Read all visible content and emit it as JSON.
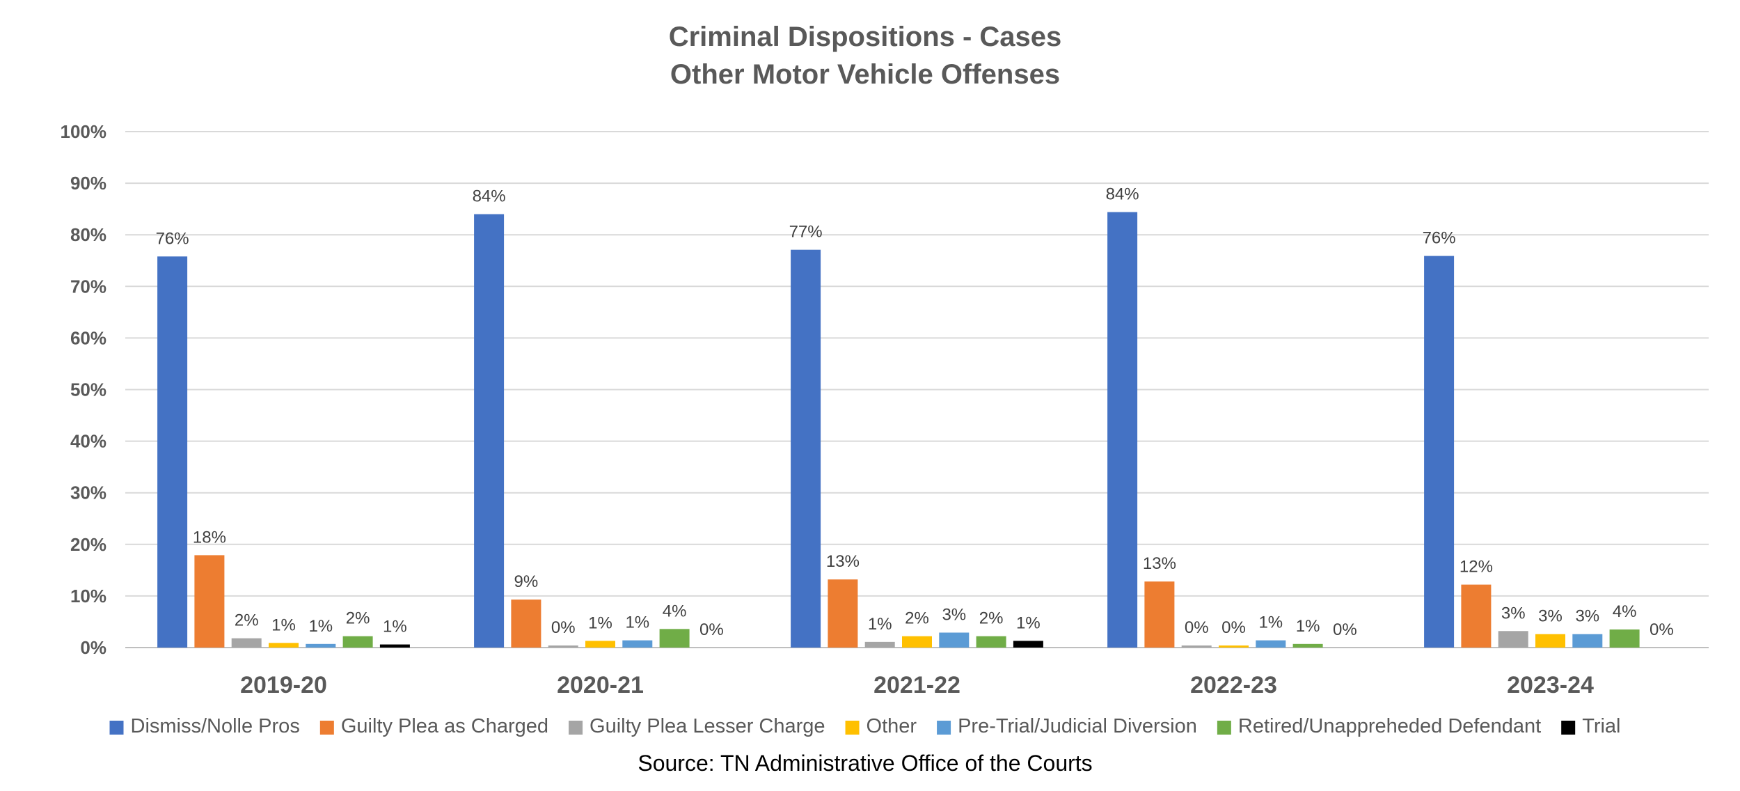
{
  "chart_data": {
    "type": "bar",
    "title": "Criminal Dispositions - Cases",
    "subtitle": "Other Motor Vehicle Offenses",
    "categories": [
      "2019-20",
      "2020-21",
      "2021-22",
      "2022-23",
      "2023-24"
    ],
    "series": [
      {
        "name": "Dismiss/Nolle Pros",
        "color": "#4472C4",
        "values": [
          75.8,
          84.0,
          77.1,
          84.4,
          75.9
        ],
        "labels": [
          "76%",
          "84%",
          "77%",
          "84%",
          "76%"
        ]
      },
      {
        "name": "Guilty Plea as Charged",
        "color": "#ED7D31",
        "values": [
          17.9,
          9.3,
          13.2,
          12.8,
          12.2
        ],
        "labels": [
          "18%",
          "9%",
          "13%",
          "13%",
          "12%"
        ]
      },
      {
        "name": "Guilty Plea Lesser Charge",
        "color": "#A5A5A5",
        "values": [
          1.8,
          0.4,
          1.1,
          0.4,
          3.2
        ],
        "labels": [
          "2%",
          "0%",
          "1%",
          "0%",
          "3%"
        ]
      },
      {
        "name": "Other",
        "color": "#FFC000",
        "values": [
          0.9,
          1.3,
          2.2,
          0.4,
          2.6
        ],
        "labels": [
          "1%",
          "1%",
          "2%",
          "0%",
          "3%"
        ]
      },
      {
        "name": "Pre-Trial/Judicial Diversion",
        "color": "#5B9BD5",
        "values": [
          0.7,
          1.4,
          2.9,
          1.4,
          2.6
        ],
        "labels": [
          "1%",
          "1%",
          "3%",
          "1%",
          "3%"
        ]
      },
      {
        "name": "Retired/Unappreheded Defendant",
        "color": "#70AD47",
        "values": [
          2.2,
          3.6,
          2.2,
          0.7,
          3.5
        ],
        "labels": [
          "2%",
          "4%",
          "2%",
          "1%",
          "4%"
        ]
      },
      {
        "name": "Trial",
        "color": "#000000",
        "values": [
          0.6,
          0.0,
          1.3,
          0.0,
          0.0
        ],
        "labels": [
          "1%",
          "0%",
          "1%",
          "0%",
          "0%"
        ]
      }
    ],
    "yticks": [
      "0%",
      "10%",
      "20%",
      "30%",
      "40%",
      "50%",
      "60%",
      "70%",
      "80%",
      "90%",
      "100%"
    ],
    "ylim": [
      0,
      100
    ],
    "grid": true,
    "legend_position": "bottom",
    "gridline_color": "#D9D9D9",
    "source": "Source: TN Administrative Office of the Courts"
  }
}
